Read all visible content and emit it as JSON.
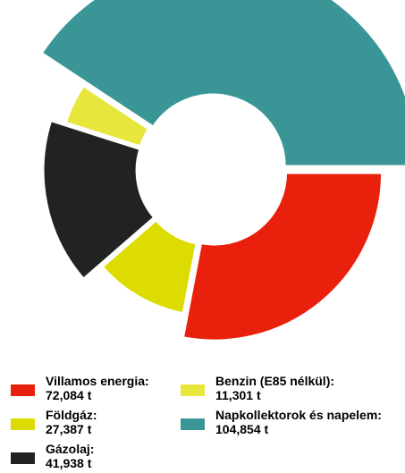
{
  "chart_data": {
    "type": "donut",
    "series": [
      {
        "name": "Villamos energia:",
        "value": 72084,
        "value_label": "72,084 t",
        "color": "#E8200C"
      },
      {
        "name": "Földgáz:",
        "value": 27387,
        "value_label": "27,387 t",
        "color": "#DCDC00"
      },
      {
        "name": "Gázolaj:",
        "value": 41938,
        "value_label": "41,938 t",
        "color": "#222222"
      },
      {
        "name": "Benzin (E85 nélkül):",
        "value": 11301,
        "value_label": "11,301 t",
        "color": "#E6E63C"
      },
      {
        "name": "Napkollektorok és napelem:",
        "value": 104854,
        "value_label": "104,854 t",
        "color": "#3A9696"
      }
    ],
    "start": "right (3 o'clock), clockwise",
    "legend_placement": "bottom"
  }
}
